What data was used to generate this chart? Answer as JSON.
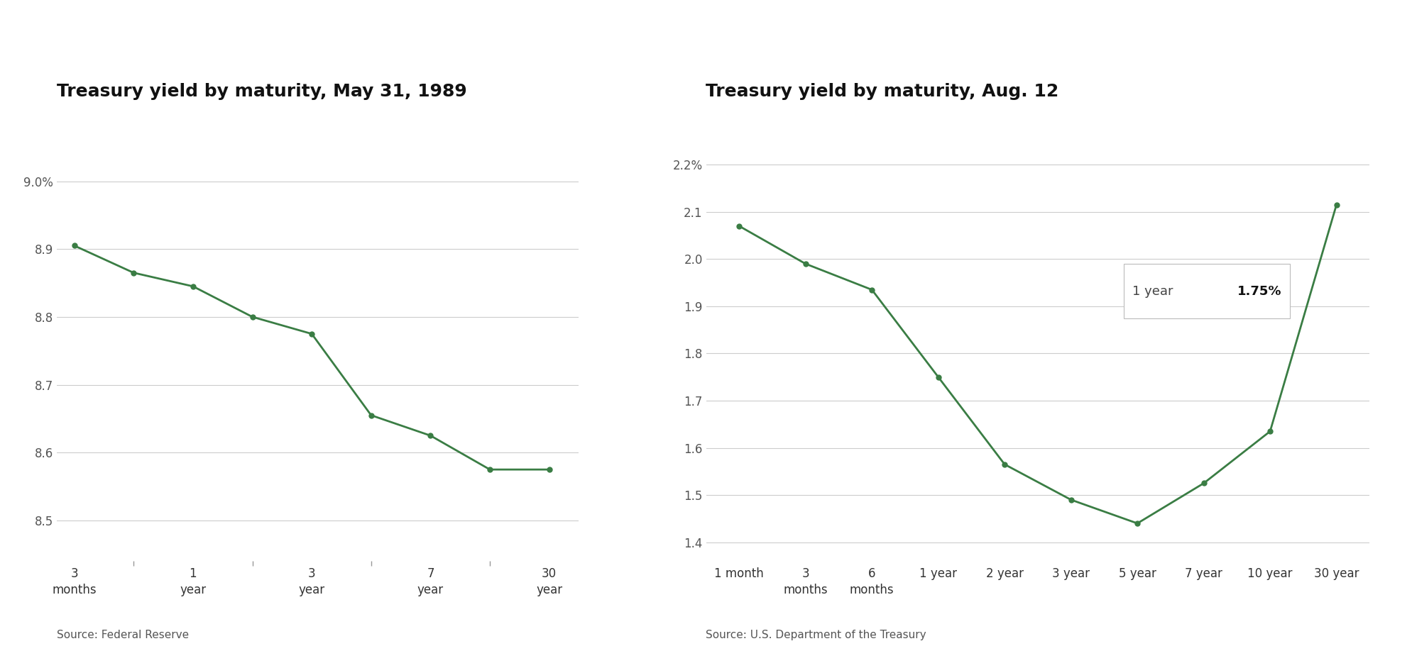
{
  "chart1": {
    "title": "Treasury yield by maturity, May 31, 1989",
    "x_tick_labels": [
      "3\nmonths",
      "1\nyear",
      "3\nyear",
      "7\nyear",
      "30\nyear"
    ],
    "x_tick_positions": [
      0,
      2,
      4,
      6,
      8
    ],
    "x_all_positions": [
      0,
      1,
      2,
      3,
      4,
      5,
      6,
      7,
      8
    ],
    "values": [
      8.905,
      8.865,
      8.845,
      8.8,
      8.775,
      8.655,
      8.625,
      8.575,
      8.575
    ],
    "yticks": [
      8.5,
      8.6,
      8.7,
      8.8,
      8.9,
      9.0
    ],
    "ytick_labels": [
      "8.5",
      "8.6",
      "8.7",
      "8.8",
      "8.9",
      "9.0%"
    ],
    "ylim": [
      8.44,
      9.08
    ],
    "line_color": "#3a7d44",
    "marker_color": "#3a7d44",
    "source": "Source: Federal Reserve"
  },
  "chart2": {
    "title": "Treasury yield by maturity, Aug. 12",
    "x_labels": [
      "1 month",
      "3\nmonths",
      "6\nmonths",
      "1 year",
      "2 year",
      "3 year",
      "5 year",
      "7 year",
      "10 year",
      "30 year"
    ],
    "x_positions": [
      0,
      1,
      2,
      3,
      4,
      5,
      6,
      7,
      8,
      9
    ],
    "values": [
      2.07,
      1.99,
      1.935,
      1.75,
      1.565,
      1.49,
      1.44,
      1.525,
      1.635,
      2.115
    ],
    "yticks": [
      1.4,
      1.5,
      1.6,
      1.7,
      1.8,
      1.9,
      2.0,
      2.1,
      2.2
    ],
    "ytick_labels": [
      "1.4",
      "1.5",
      "1.6",
      "1.7",
      "1.8",
      "1.9",
      "2.0",
      "2.1",
      "2.2%"
    ],
    "ylim": [
      1.36,
      2.28
    ],
    "line_color": "#3a7d44",
    "marker_color": "#3a7d44",
    "ann_label": "1 year",
    "ann_value": "1.75%",
    "source": "Source: U.S. Department of the Treasury"
  },
  "background_color": "#ffffff",
  "line_width": 2.0,
  "marker_size": 5,
  "grid_color": "#cccccc",
  "title_fontsize": 18,
  "tick_fontsize": 12,
  "source_fontsize": 11
}
